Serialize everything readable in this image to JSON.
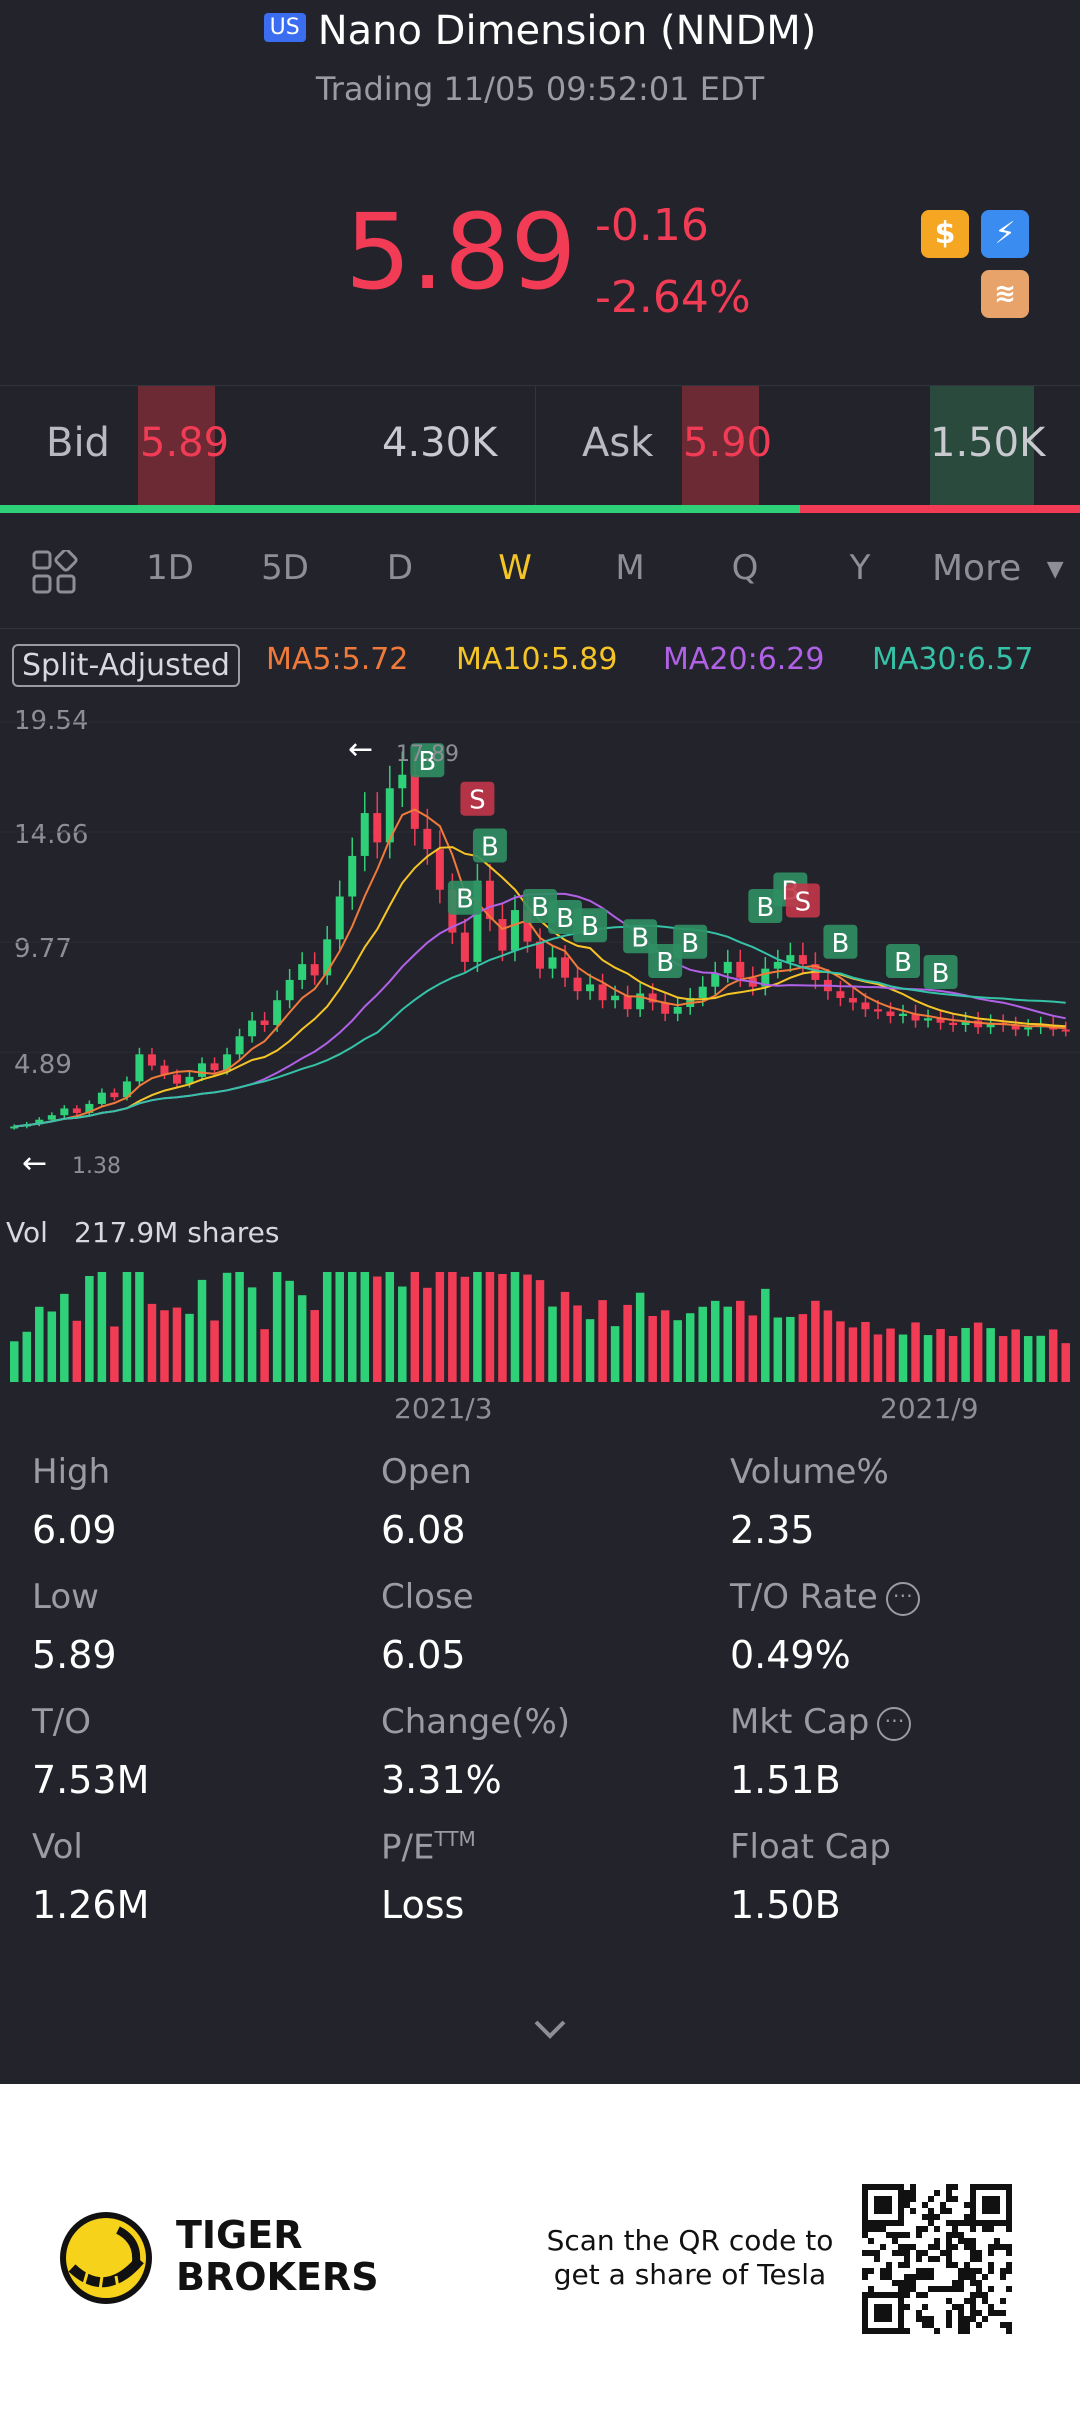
{
  "header": {
    "exchange_badge": "US",
    "title": "Nano Dimension (NNDM)",
    "subtitle": "Trading 11/05 09:52:01 EDT"
  },
  "quote": {
    "price": "5.89",
    "change": "-0.16",
    "change_pct": "-2.64%",
    "icons": [
      "dollar-icon",
      "flash-icon",
      "stack-icon"
    ]
  },
  "orderbook": {
    "bid_label": "Bid",
    "bid_price": "5.89",
    "bid_size": "4.30K",
    "ask_label": "Ask",
    "ask_price": "5.90",
    "ask_size": "1.50K"
  },
  "tabs": {
    "items": [
      "1D",
      "5D",
      "D",
      "W",
      "M",
      "Q",
      "Y"
    ],
    "active": "W",
    "more": "More"
  },
  "indicators": {
    "split_label": "Split-Adjusted",
    "ma5": "MA5:5.72",
    "ma10": "MA10:5.89",
    "ma20": "MA20:6.29",
    "ma30": "MA30:6.57"
  },
  "colors": {
    "up": "#2fd178",
    "down": "#f23b55",
    "ma5": "#f07a3a",
    "ma10": "#f5c426",
    "ma20": "#b061e6",
    "ma30": "#35c2a6",
    "active_tab": "#f5c426"
  },
  "chart_data": {
    "type": "candlestick",
    "y_axis_ticks": [
      "19.54",
      "14.66",
      "9.77",
      "4.89"
    ],
    "ylim": [
      0,
      19.54
    ],
    "high_marker": "17.89",
    "low_marker": "1.38",
    "x_ticks": [
      "2021/3",
      "2021/9"
    ],
    "volume_label": "Vol",
    "volume_value": "217.9M shares",
    "closes": [
      1.6,
      1.7,
      1.9,
      2.1,
      2.4,
      2.2,
      2.6,
      3.1,
      2.9,
      3.6,
      4.8,
      4.3,
      3.9,
      3.5,
      3.8,
      4.4,
      4.1,
      4.8,
      5.6,
      6.3,
      6.1,
      7.2,
      8.1,
      8.8,
      8.3,
      9.9,
      11.8,
      13.6,
      15.5,
      14.2,
      16.6,
      17.2,
      14.8,
      13.9,
      12.1,
      10.2,
      8.9,
      12.5,
      10.8,
      9.4,
      11.2,
      9.8,
      8.6,
      9.1,
      8.2,
      7.6,
      7.9,
      7.2,
      7.4,
      6.8,
      7.5,
      7.1,
      6.6,
      6.9,
      7.3,
      7.8,
      8.4,
      8.9,
      8.2,
      7.8,
      8.6,
      8.9,
      9.2,
      8.8,
      8.1,
      7.6,
      7.3,
      7.1,
      6.8,
      6.7,
      6.5,
      6.6,
      6.3,
      6.4,
      6.2,
      6.1,
      6.3,
      6.0,
      6.2,
      6.1,
      5.9,
      6.0,
      6.1,
      5.9,
      5.89
    ],
    "buy_markers": 14,
    "sell_markers": 2
  },
  "stats": [
    {
      "label": "High",
      "value": "6.09"
    },
    {
      "label": "Open",
      "value": "6.08"
    },
    {
      "label": "Volume%",
      "value": "2.35"
    },
    {
      "label": "Low",
      "value": "5.89"
    },
    {
      "label": "Close",
      "value": "6.05"
    },
    {
      "label": "T/O Rate",
      "value": "0.49%"
    },
    {
      "label": "T/O",
      "value": "7.53M"
    },
    {
      "label": "Change(%)",
      "value": "3.31%"
    },
    {
      "label": "Mkt Cap",
      "value": "1.51B"
    },
    {
      "label": "Vol",
      "value": "1.26M"
    },
    {
      "label": "P/E",
      "value": "Loss"
    },
    {
      "label": "Float Cap",
      "value": "1.50B"
    }
  ],
  "pe_superscript": "TTM",
  "footer": {
    "brand_line1": "TIGER",
    "brand_line2": "BROKERS",
    "cta_line1": "Scan the QR code to",
    "cta_line2": "get a share of Tesla"
  }
}
